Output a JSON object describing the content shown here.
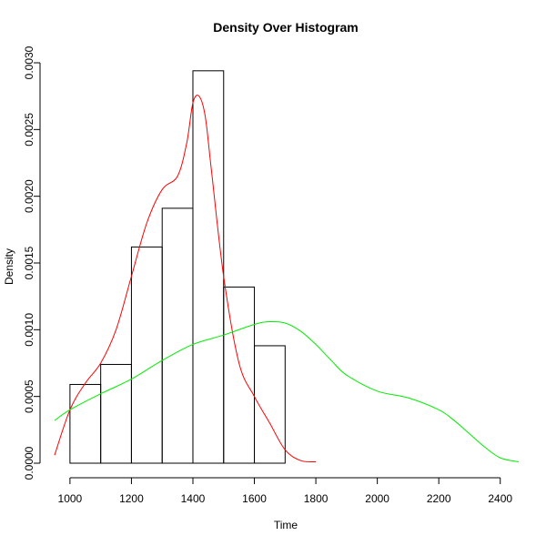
{
  "chart_data": {
    "type": "bar",
    "title": "Density Over Histogram",
    "xlabel": "Time",
    "ylabel": "Density",
    "xlim": [
      950,
      2460
    ],
    "ylim": [
      0,
      0.003
    ],
    "grid": false,
    "x_ticks": [
      1000,
      1200,
      1400,
      1600,
      1800,
      2000,
      2200,
      2400
    ],
    "x_tick_labels": [
      "1000",
      "1200",
      "1400",
      "1600",
      "1800",
      "2000",
      "2200",
      "2400"
    ],
    "y_ticks": [
      0,
      0.0005,
      0.001,
      0.0015,
      0.002,
      0.0025,
      0.003
    ],
    "y_tick_labels": [
      "0.0000",
      "0.0005",
      "0.0010",
      "0.0015",
      "0.0020",
      "0.0025",
      "0.0030"
    ],
    "histogram": {
      "breaks": [
        1000,
        1100,
        1200,
        1300,
        1400,
        1500,
        1600,
        1700
      ],
      "density": [
        0.00059,
        0.00074,
        0.00162,
        0.00191,
        0.00294,
        0.00132,
        0.00088
      ],
      "color": "#000000"
    },
    "series": [
      {
        "type": "line",
        "color": "#ff0000",
        "x": [
          950,
          1000,
          1050,
          1100,
          1150,
          1200,
          1250,
          1300,
          1350,
          1380,
          1400,
          1420,
          1440,
          1460,
          1500,
          1550,
          1600,
          1650,
          1700,
          1750,
          1800
        ],
        "y": [
          6e-05,
          0.0004,
          0.0006,
          0.00075,
          0.001,
          0.0014,
          0.0018,
          0.00205,
          0.00215,
          0.0024,
          0.0027,
          0.00275,
          0.0026,
          0.0022,
          0.0014,
          0.00075,
          0.0005,
          0.0003,
          0.0001,
          2e-05,
          1e-05
        ]
      },
      {
        "type": "line",
        "color": "#00ee00",
        "x": [
          950,
          1000,
          1100,
          1200,
          1300,
          1400,
          1500,
          1600,
          1650,
          1700,
          1750,
          1800,
          1850,
          1900,
          2000,
          2100,
          2200,
          2250,
          2300,
          2350,
          2400,
          2460
        ],
        "y": [
          0.00032,
          0.0004,
          0.00052,
          0.00063,
          0.00077,
          0.00089,
          0.00096,
          0.00104,
          0.00106,
          0.00105,
          0.00099,
          0.00089,
          0.00077,
          0.00066,
          0.00054,
          0.00049,
          0.0004,
          0.00032,
          0.00022,
          0.00012,
          4e-05,
          1e-05
        ]
      }
    ]
  }
}
